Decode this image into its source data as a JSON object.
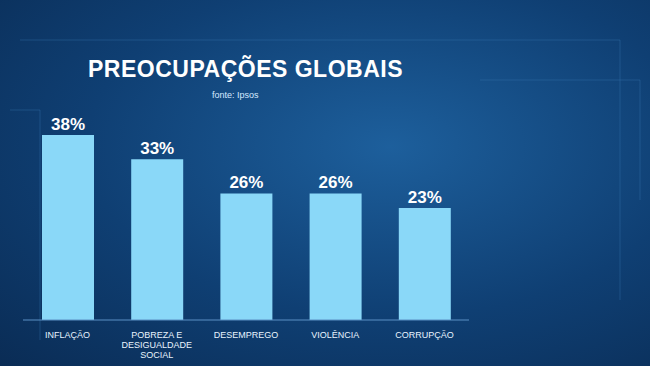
{
  "chart_data": {
    "type": "bar",
    "title": "PREOCUPAÇÕES GLOBAIS",
    "subtitle": "fonte: Ipsos",
    "categories": [
      "INFLAÇÃO",
      "POBREZA E DESIGUALDADE SOCIAL",
      "DESEMPREGO",
      "VIOLÊNCIA",
      "CORRUPÇÃO"
    ],
    "values": [
      38,
      33,
      26,
      26,
      23
    ],
    "value_labels": [
      "38%",
      "33%",
      "26%",
      "26%",
      "23%"
    ],
    "color": "#8ad8f8",
    "data_labels": true,
    "tick_labels": "x",
    "grid": false
  }
}
